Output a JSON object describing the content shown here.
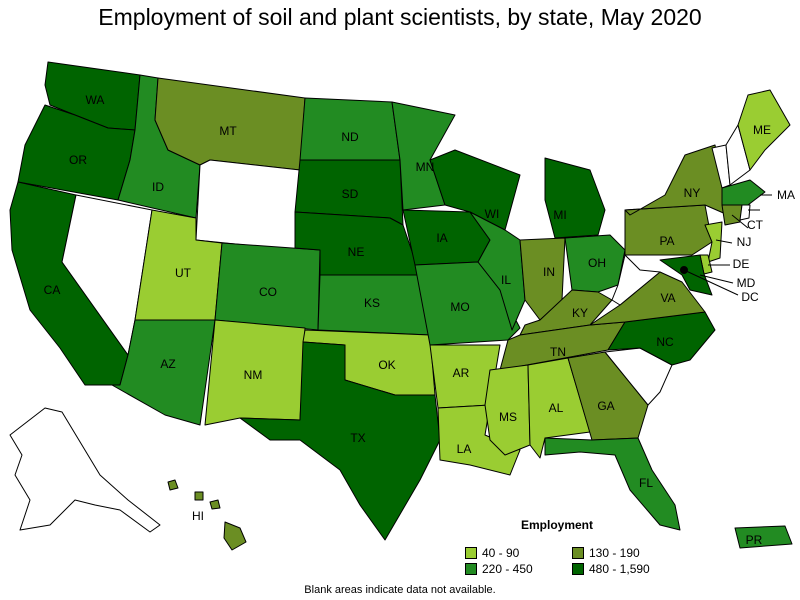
{
  "title": "Employment of soil and plant scientists, by state, May 2020",
  "footnote": "Blank areas indicate data not available.",
  "legend": {
    "title": "Employment",
    "items": [
      {
        "label": "40 - 90",
        "color": "#9acd32"
      },
      {
        "label": "130 - 190",
        "color": "#6b8e23"
      },
      {
        "label": "220 - 450",
        "color": "#228b22"
      },
      {
        "label": "480 - 1,590",
        "color": "#006400"
      }
    ]
  },
  "states": {
    "WA": {
      "abbr": "WA",
      "color": "#006400"
    },
    "OR": {
      "abbr": "OR",
      "color": "#006400"
    },
    "CA": {
      "abbr": "CA",
      "color": "#006400"
    },
    "ID": {
      "abbr": "ID",
      "color": "#228b22"
    },
    "MT": {
      "abbr": "MT",
      "color": "#6b8e23"
    },
    "WY": {
      "abbr": "",
      "color": "#ffffff"
    },
    "NV": {
      "abbr": "",
      "color": "#ffffff"
    },
    "UT": {
      "abbr": "UT",
      "color": "#9acd32"
    },
    "AZ": {
      "abbr": "AZ",
      "color": "#228b22"
    },
    "CO": {
      "abbr": "CO",
      "color": "#228b22"
    },
    "NM": {
      "abbr": "NM",
      "color": "#9acd32"
    },
    "ND": {
      "abbr": "ND",
      "color": "#228b22"
    },
    "SD": {
      "abbr": "SD",
      "color": "#006400"
    },
    "NE": {
      "abbr": "NE",
      "color": "#006400"
    },
    "KS": {
      "abbr": "KS",
      "color": "#228b22"
    },
    "OK": {
      "abbr": "OK",
      "color": "#9acd32"
    },
    "TX": {
      "abbr": "TX",
      "color": "#006400"
    },
    "MN": {
      "abbr": "MN",
      "color": "#228b22"
    },
    "IA": {
      "abbr": "IA",
      "color": "#006400"
    },
    "MO": {
      "abbr": "MO",
      "color": "#228b22"
    },
    "AR": {
      "abbr": "AR",
      "color": "#9acd32"
    },
    "LA": {
      "abbr": "LA",
      "color": "#9acd32"
    },
    "WI": {
      "abbr": "WI",
      "color": "#006400"
    },
    "IL": {
      "abbr": "IL",
      "color": "#228b22"
    },
    "MI": {
      "abbr": "MI",
      "color": "#006400"
    },
    "IN": {
      "abbr": "IN",
      "color": "#6b8e23"
    },
    "OH": {
      "abbr": "OH",
      "color": "#228b22"
    },
    "KY": {
      "abbr": "KY",
      "color": "#6b8e23"
    },
    "TN": {
      "abbr": "TN",
      "color": "#6b8e23"
    },
    "MS": {
      "abbr": "MS",
      "color": "#9acd32"
    },
    "AL": {
      "abbr": "AL",
      "color": "#9acd32"
    },
    "GA": {
      "abbr": "GA",
      "color": "#6b8e23"
    },
    "FL": {
      "abbr": "FL",
      "color": "#228b22"
    },
    "SC": {
      "abbr": "",
      "color": "#ffffff"
    },
    "NC": {
      "abbr": "NC",
      "color": "#006400"
    },
    "VA": {
      "abbr": "VA",
      "color": "#6b8e23"
    },
    "WV": {
      "abbr": "",
      "color": "#ffffff"
    },
    "PA": {
      "abbr": "PA",
      "color": "#6b8e23"
    },
    "NY": {
      "abbr": "NY",
      "color": "#6b8e23"
    },
    "VT": {
      "abbr": "",
      "color": "#ffffff"
    },
    "NH": {
      "abbr": "",
      "color": "#ffffff"
    },
    "ME": {
      "abbr": "ME",
      "color": "#9acd32"
    },
    "MA": {
      "abbr": "MA",
      "color": "#228b22"
    },
    "CT": {
      "abbr": "CT",
      "color": "#6b8e23"
    },
    "RI": {
      "abbr": "",
      "color": "#ffffff"
    },
    "NJ": {
      "abbr": "NJ",
      "color": "#9acd32"
    },
    "DE": {
      "abbr": "DE",
      "color": "#9acd32"
    },
    "MD": {
      "abbr": "MD",
      "color": "#006400"
    },
    "DC": {
      "abbr": "DC",
      "color": "#000000"
    },
    "AK": {
      "abbr": "",
      "color": "#ffffff"
    },
    "HI": {
      "abbr": "HI",
      "color": "#6b8e23"
    },
    "PR": {
      "abbr": "PR",
      "color": "#228b22"
    }
  }
}
